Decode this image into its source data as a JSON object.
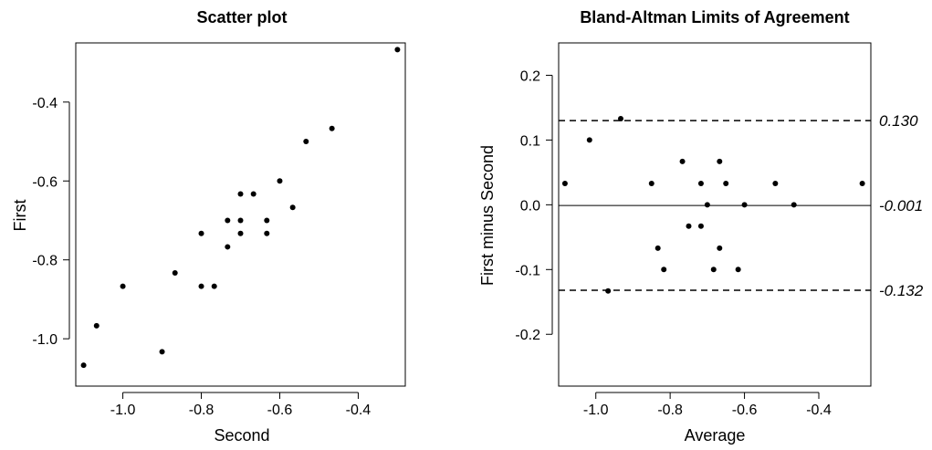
{
  "chart_data": [
    {
      "type": "scatter",
      "title": "Scatter plot",
      "xlabel": "Second",
      "ylabel": "First",
      "xlim": [
        -1.12,
        -0.28
      ],
      "ylim": [
        -1.12,
        -0.25
      ],
      "xticks": [
        -1.0,
        -0.8,
        -0.6,
        -0.4
      ],
      "yticks": [
        -1.0,
        -0.8,
        -0.6,
        -0.4
      ],
      "xtick_labels": [
        "-1.0",
        "-0.8",
        "-0.6",
        "-0.4"
      ],
      "ytick_labels": [
        "-1.0",
        "-0.8",
        "-0.6",
        "-0.4"
      ],
      "grid": false,
      "points": [
        {
          "x": -0.3,
          "y": -0.267
        },
        {
          "x": -0.467,
          "y": -0.467
        },
        {
          "x": -0.533,
          "y": -0.5
        },
        {
          "x": -0.567,
          "y": -0.667
        },
        {
          "x": -0.6,
          "y": -0.6
        },
        {
          "x": -0.633,
          "y": -0.7
        },
        {
          "x": -0.633,
          "y": -0.733
        },
        {
          "x": -0.667,
          "y": -0.633
        },
        {
          "x": -0.7,
          "y": -0.633
        },
        {
          "x": -0.7,
          "y": -0.7
        },
        {
          "x": -0.7,
          "y": -0.733
        },
        {
          "x": -0.733,
          "y": -0.7
        },
        {
          "x": -0.733,
          "y": -0.767
        },
        {
          "x": -0.767,
          "y": -0.867
        },
        {
          "x": -0.8,
          "y": -0.733
        },
        {
          "x": -0.8,
          "y": -0.867
        },
        {
          "x": -0.867,
          "y": -0.833
        },
        {
          "x": -0.9,
          "y": -1.033
        },
        {
          "x": -1.0,
          "y": -0.867
        },
        {
          "x": -1.067,
          "y": -0.967
        },
        {
          "x": -1.1,
          "y": -1.067
        }
      ]
    },
    {
      "type": "scatter",
      "title": "Bland-Altman Limits of Agreement",
      "xlabel": "Average",
      "ylabel": "First minus Second",
      "xlim": [
        -1.1,
        -0.26
      ],
      "ylim": [
        -0.28,
        0.25
      ],
      "xticks": [
        -1.0,
        -0.8,
        -0.6,
        -0.4
      ],
      "yticks": [
        -0.2,
        -0.1,
        0.0,
        0.1,
        0.2
      ],
      "xtick_labels": [
        "-1.0",
        "-0.8",
        "-0.6",
        "-0.4"
      ],
      "ytick_labels": [
        "-0.2",
        "-0.1",
        "0.0",
        "0.1",
        "0.2"
      ],
      "grid": false,
      "reference_lines": [
        {
          "y": 0.13,
          "style": "dashed",
          "label": "0.130"
        },
        {
          "y": -0.001,
          "style": "solid",
          "label": "-0.001"
        },
        {
          "y": -0.132,
          "style": "dashed",
          "label": "-0.132"
        }
      ],
      "points": [
        {
          "x": -0.283,
          "y": 0.033
        },
        {
          "x": -0.467,
          "y": 0.0
        },
        {
          "x": -0.517,
          "y": 0.033
        },
        {
          "x": -0.6,
          "y": 0.0
        },
        {
          "x": -0.617,
          "y": -0.1
        },
        {
          "x": -0.65,
          "y": 0.033
        },
        {
          "x": -0.667,
          "y": 0.067
        },
        {
          "x": -0.667,
          "y": -0.067
        },
        {
          "x": -0.683,
          "y": -0.1
        },
        {
          "x": -0.7,
          "y": 0.0
        },
        {
          "x": -0.717,
          "y": 0.033
        },
        {
          "x": -0.717,
          "y": -0.033
        },
        {
          "x": -0.75,
          "y": -0.033
        },
        {
          "x": -0.767,
          "y": 0.067
        },
        {
          "x": -0.817,
          "y": -0.1
        },
        {
          "x": -0.833,
          "y": -0.067
        },
        {
          "x": -0.85,
          "y": 0.033
        },
        {
          "x": -0.933,
          "y": 0.133
        },
        {
          "x": -0.967,
          "y": -0.133
        },
        {
          "x": -1.017,
          "y": 0.1
        },
        {
          "x": -1.083,
          "y": 0.033
        }
      ]
    }
  ]
}
